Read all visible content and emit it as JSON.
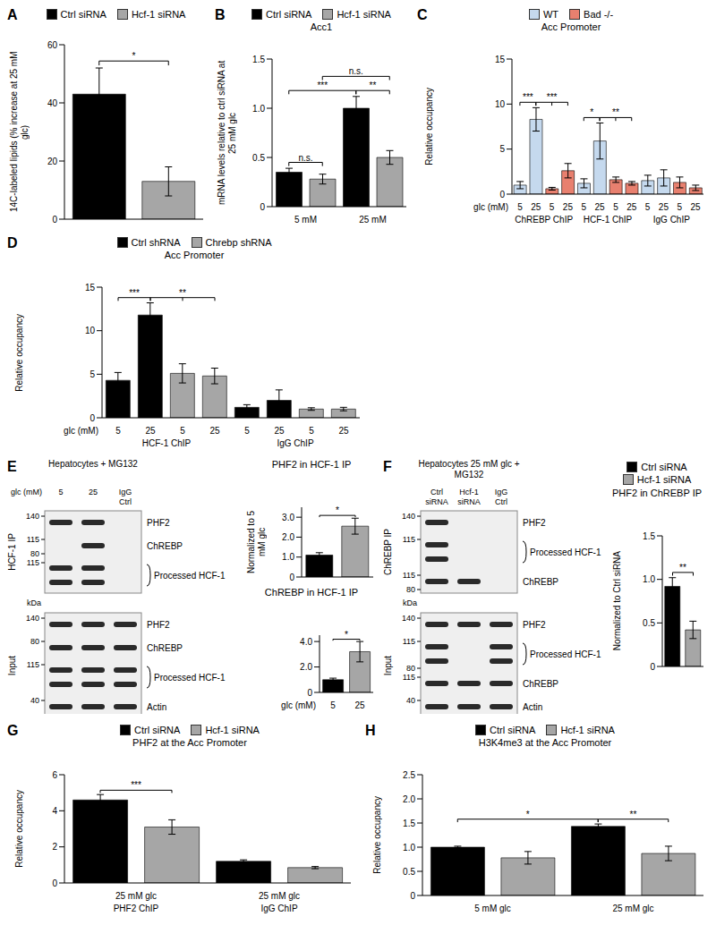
{
  "chart_data": [
    {
      "panel": "A",
      "type": "bar",
      "categories": [
        null,
        null
      ],
      "series": [
        {
          "name": "Ctrl siRNA",
          "color": "#000000",
          "values": [
            43,
            null
          ],
          "errors": [
            9,
            null
          ]
        },
        {
          "name": "Hcf-1 siRNA",
          "color": "#a6a6a6",
          "values": [
            null,
            13
          ],
          "errors": [
            null,
            5
          ]
        }
      ],
      "legend": "top",
      "ylabel": "14C-labeled lipids (% increase at 25 mM glc)",
      "ylim": [
        0,
        60
      ],
      "yticks": [
        0,
        20,
        40,
        60
      ],
      "annotations": [
        {
          "text": "*",
          "bars": [
            0,
            1
          ]
        }
      ]
    },
    {
      "panel": "B",
      "type": "bar",
      "title": "Acc1",
      "categories": [
        null,
        null,
        null,
        null
      ],
      "groups": [
        [
          {
            "label": "5 mM",
            "size": 2
          },
          {
            "label": "25 mM",
            "size": 2
          }
        ]
      ],
      "series": [
        {
          "name": "Ctrl siRNA",
          "color": "#000000",
          "values": [
            0.35,
            null,
            1.0,
            null
          ],
          "errors": [
            0.04,
            null,
            0.12,
            null
          ]
        },
        {
          "name": "Hcf-1 siRNA",
          "color": "#a6a6a6",
          "values": [
            null,
            0.28,
            null,
            0.5
          ],
          "errors": [
            null,
            0.05,
            null,
            0.07
          ]
        }
      ],
      "legend": "top",
      "ylabel": "mRNA levels relative to ctrl siRNA at 25 mM glc",
      "ylim": [
        0,
        1.5
      ],
      "yticks": [
        0,
        0.5,
        {
          "value": 1,
          "label": "1.0"
        },
        1.5
      ],
      "annotations": [
        {
          "text": "n.s.",
          "bars": [
            0,
            1
          ]
        },
        {
          "text": "**",
          "bars": [
            2,
            3
          ]
        },
        {
          "text": "***",
          "bars": [
            0,
            2
          ]
        },
        {
          "text": "n.s.",
          "bars": [
            1,
            3
          ]
        }
      ]
    },
    {
      "panel": "C",
      "type": "bar",
      "title": "Acc Promoter",
      "xlabel": "glc (mM)",
      "categories": [
        "5",
        "25",
        "5",
        "25",
        "5",
        "25",
        "5",
        "25",
        "5",
        "25",
        "5",
        "25"
      ],
      "groups": [
        [
          {
            "label": "ChREBP ChIP",
            "size": 4
          },
          {
            "label": "HCF-1 ChIP",
            "size": 4
          },
          {
            "label": "IgG ChIP",
            "size": 4
          }
        ]
      ],
      "series": [
        {
          "name": "WT",
          "color": "#c5d9ee",
          "values": [
            1.0,
            8.3,
            null,
            null,
            1.2,
            5.9,
            null,
            null,
            1.5,
            1.8,
            null,
            null
          ],
          "errors": [
            0.4,
            1.3,
            null,
            null,
            0.5,
            2.0,
            null,
            null,
            0.6,
            0.9,
            null,
            null
          ]
        },
        {
          "name": "Bad -/-",
          "color": "#e8806f",
          "values": [
            null,
            null,
            0.6,
            2.6,
            null,
            null,
            1.6,
            1.2,
            null,
            null,
            1.3,
            0.7
          ],
          "errors": [
            null,
            null,
            0.15,
            0.8,
            null,
            null,
            0.3,
            0.2,
            null,
            null,
            0.6,
            0.3
          ]
        }
      ],
      "legend": "top",
      "ylabel": "Relative occupancy",
      "ylim": [
        0,
        15
      ],
      "yticks": [
        0,
        5,
        10,
        15
      ],
      "annotations": [
        {
          "text": "***",
          "bars": [
            0,
            1
          ]
        },
        {
          "text": "***",
          "bars": [
            1,
            2,
            3
          ]
        },
        {
          "text": "*",
          "bars": [
            4,
            5
          ]
        },
        {
          "text": "**",
          "bars": [
            5,
            6,
            7
          ]
        }
      ]
    },
    {
      "panel": "D",
      "type": "bar",
      "title": "Acc Promoter",
      "xlabel": "glc (mM)",
      "categories": [
        "5",
        "25",
        "5",
        "25",
        "5",
        "25",
        "5",
        "25"
      ],
      "groups": [
        [
          {
            "label": "HCF-1 ChIP",
            "size": 4
          },
          {
            "label": "IgG ChIP",
            "size": 4
          }
        ]
      ],
      "series": [
        {
          "name": "Ctrl shRNA",
          "color": "#000000",
          "values": [
            4.3,
            11.8,
            null,
            null,
            1.2,
            2.0,
            null,
            null
          ],
          "errors": [
            0.9,
            1.4,
            null,
            null,
            0.3,
            1.2,
            null,
            null
          ]
        },
        {
          "name": "Chrebp shRNA",
          "color": "#a6a6a6",
          "values": [
            null,
            null,
            5.1,
            4.8,
            null,
            null,
            1.0,
            1.0
          ],
          "errors": [
            null,
            null,
            1.1,
            0.9,
            null,
            null,
            0.15,
            0.2
          ]
        }
      ],
      "legend": "top",
      "ylabel": "Relative occupancy",
      "ylim": [
        0,
        15
      ],
      "yticks": [
        0,
        5,
        10,
        15
      ],
      "annotations": [
        {
          "text": "***",
          "bars": [
            0,
            1
          ]
        },
        {
          "text": "**",
          "bars": [
            1,
            2,
            3
          ]
        }
      ]
    },
    {
      "type": "bar",
      "title": "PHF2 in HCF-1 IP",
      "categories": [
        null,
        null
      ],
      "values": [
        1.1,
        2.55
      ],
      "errors": [
        0.12,
        0.4
      ],
      "colors": [
        "#000000",
        "#a6a6a6"
      ],
      "ylabel": "Normalized to 5 mM glc",
      "ylim": [
        0,
        3.5
      ],
      "yticks": [
        0,
        {
          "value": 1,
          "label": "1.0"
        },
        {
          "value": 2,
          "label": "2.0"
        },
        {
          "value": 3,
          "label": "3.0"
        }
      ],
      "annotations": [
        {
          "text": "*",
          "bars": [
            0,
            1
          ]
        }
      ]
    },
    {
      "type": "bar",
      "title": "ChREBP in HCF-1 IP",
      "xlabel": "glc (mM)",
      "categories": [
        "5",
        "25"
      ],
      "values": [
        1.0,
        3.2
      ],
      "errors": [
        0.12,
        0.8
      ],
      "colors": [
        "#000000",
        "#a6a6a6"
      ],
      "ylim": [
        0,
        4.5
      ],
      "yticks": [
        0,
        {
          "value": 1,
          "label": "1.0"
        },
        {
          "value": 2,
          "label": "2.0"
        },
        {
          "value": 3,
          "label": "3.0"
        },
        {
          "value": 4,
          "label": "4.0"
        }
      ],
      "annotations": [
        {
          "text": "*",
          "bars": [
            0,
            1
          ]
        }
      ]
    },
    {
      "type": "bar",
      "title": "PHF2 in ChREBP IP",
      "categories": [
        null,
        null
      ],
      "series": [
        {
          "name": "Ctrl siRNA",
          "color": "#000000",
          "values": [
            0.92,
            null
          ],
          "errors": [
            0.1,
            null
          ]
        },
        {
          "name": "Hcf-1 siRNA",
          "color": "#a6a6a6",
          "values": [
            null,
            0.42
          ],
          "errors": [
            null,
            0.1
          ]
        }
      ],
      "legend": "top",
      "ylabel": "Normalized to Ctrl siRNA",
      "ylim": [
        0,
        1.5
      ],
      "yticks": [
        0,
        0.5,
        {
          "value": 1,
          "label": "1.0"
        },
        1.5
      ],
      "annotations": [
        {
          "text": "**",
          "bars": [
            0,
            1
          ]
        }
      ]
    },
    {
      "panel": "G",
      "type": "bar",
      "title": "PHF2 at the Acc Promoter",
      "categories": [
        null,
        null,
        null,
        null
      ],
      "groups": [
        [
          {
            "label": "25 mM glc",
            "size": 2
          },
          {
            "label": "25 mM glc",
            "size": 2
          }
        ],
        [
          {
            "label": "PHF2 ChIP",
            "size": 2
          },
          {
            "label": "IgG ChIP",
            "size": 2
          }
        ]
      ],
      "series": [
        {
          "name": "Ctrl siRNA",
          "color": "#000000",
          "values": [
            4.6,
            null,
            1.2,
            null
          ],
          "errors": [
            0.3,
            null,
            0.08,
            null
          ]
        },
        {
          "name": "Hcf-1 siRNA",
          "color": "#a6a6a6",
          "values": [
            null,
            3.1,
            null,
            0.85
          ],
          "errors": [
            null,
            0.4,
            null,
            0.06
          ]
        }
      ],
      "legend": "top",
      "ylabel": "Relative occupancy",
      "ylim": [
        0,
        6
      ],
      "yticks": [
        0,
        2,
        4,
        6
      ],
      "annotations": [
        {
          "text": "***",
          "bars": [
            0,
            1
          ]
        }
      ]
    },
    {
      "panel": "H",
      "type": "bar",
      "title": "H3K4me3 at the Acc Promoter",
      "categories": [
        null,
        null,
        null,
        null
      ],
      "groups": [
        [
          {
            "label": "5 mM glc",
            "size": 2
          },
          {
            "label": "25 mM glc",
            "size": 2
          }
        ]
      ],
      "series": [
        {
          "name": "Ctrl siRNA",
          "color": "#000000",
          "values": [
            1.0,
            null,
            1.43,
            null
          ],
          "errors": [
            0.02,
            null,
            0.05,
            null
          ]
        },
        {
          "name": "Hcf-1 siRNA",
          "color": "#a6a6a6",
          "values": [
            null,
            0.78,
            null,
            0.87
          ],
          "errors": [
            null,
            0.13,
            null,
            0.15
          ]
        }
      ],
      "legend": "top",
      "ylabel": "Relative occupancy",
      "ylim": [
        0,
        2.5
      ],
      "yticks": [
        0,
        0.5,
        {
          "value": 1,
          "label": "1.0"
        },
        1.5,
        {
          "value": 2,
          "label": "2.0"
        },
        2.5
      ],
      "annotations": [
        {
          "text": "*",
          "bars": [
            0,
            2
          ]
        },
        {
          "text": "**",
          "bars": [
            2,
            3
          ]
        }
      ]
    }
  ],
  "blots": [
    {
      "panel": "E",
      "title": "Hepatocytes + MG132",
      "column_header": "glc (mM)",
      "columns": [
        "5",
        "25",
        "IgG Ctrl"
      ],
      "marker_unit": "kDa",
      "sections": [
        {
          "label": "HCF-1 IP",
          "rows": [
            {
              "label": "PHF2",
              "markers": [
                140
              ],
              "bands": [
                true,
                true,
                false
              ]
            },
            {
              "label": "ChREBP",
              "markers": [
                115,
                80
              ],
              "bands": [
                false,
                true,
                false
              ]
            },
            {
              "label": "Processed HCF-1",
              "markers": [
                115
              ],
              "bands": [
                true,
                true,
                false
              ],
              "doublet": true
            }
          ]
        },
        {
          "label": "Input",
          "rows": [
            {
              "label": "PHF2",
              "markers": [
                140
              ],
              "bands": [
                true,
                true,
                true
              ]
            },
            {
              "label": "ChREBP",
              "markers": [
                80
              ],
              "bands": [
                true,
                true,
                true
              ]
            },
            {
              "label": "Processed HCF-1",
              "markers": [
                115
              ],
              "bands": [
                true,
                true,
                true
              ],
              "doublet": true
            },
            {
              "label": "Actin",
              "markers": [
                40
              ],
              "bands": [
                true,
                true,
                true
              ]
            }
          ]
        }
      ]
    },
    {
      "panel": "F",
      "title": "Hepatocytes 25 mM glc + MG132",
      "columns": [
        "Ctrl siRNA",
        "Hcf-1 siRNA",
        "IgG Ctrl"
      ],
      "marker_unit": "kDa",
      "sections": [
        {
          "label": "ChREBP IP",
          "rows": [
            {
              "label": "PHF2",
              "markers": [
                140
              ],
              "bands": [
                true,
                false,
                false
              ]
            },
            {
              "label": "Processed HCF-1",
              "markers": [
                115
              ],
              "bands": [
                true,
                false,
                false
              ],
              "doublet": true
            },
            {
              "label": "ChREBP",
              "markers": [
                115,
                80
              ],
              "bands": [
                true,
                true,
                false
              ]
            }
          ]
        },
        {
          "label": "Input",
          "rows": [
            {
              "label": "PHF2",
              "markers": [
                140
              ],
              "bands": [
                true,
                true,
                true
              ]
            },
            {
              "label": "Processed HCF-1",
              "markers": [
                115,
                80
              ],
              "bands": [
                true,
                false,
                true
              ],
              "doublet": true
            },
            {
              "label": "ChREBP",
              "markers": [
                115
              ],
              "bands": [
                true,
                true,
                true
              ]
            },
            {
              "label": "Actin",
              "markers": [
                40
              ],
              "bands": [
                true,
                true,
                true
              ]
            }
          ]
        }
      ]
    }
  ]
}
